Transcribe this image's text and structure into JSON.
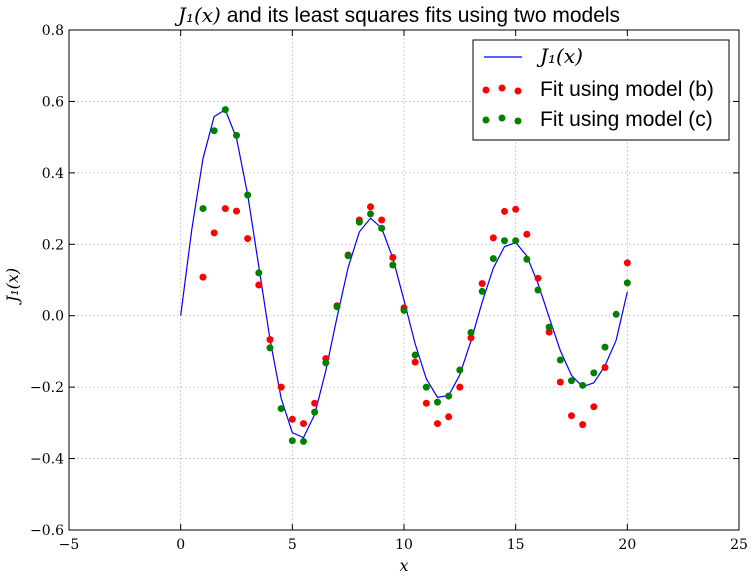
{
  "chart_data": {
    "type": "line",
    "title": {
      "math": "J₁(x)",
      "text": " and its least squares fits using two models"
    },
    "xlabel": "x",
    "ylabel": "J₁(x)",
    "xlim": [
      -5,
      25
    ],
    "ylim": [
      -0.6,
      0.8
    ],
    "xticks": [
      -5,
      0,
      5,
      10,
      15,
      20,
      25
    ],
    "yticks": [
      -0.6,
      -0.4,
      -0.2,
      0.0,
      0.2,
      0.4,
      0.6,
      0.8
    ],
    "xtick_labels": [
      "−5",
      "0",
      "5",
      "10",
      "15",
      "20",
      "25"
    ],
    "ytick_labels": [
      "−0.6",
      "−0.4",
      "−0.2",
      "0.0",
      "0.2",
      "0.4",
      "0.6",
      "0.8"
    ],
    "grid": true,
    "legend_position": "top-right",
    "series": [
      {
        "name": "J₁(x)",
        "kind": "line",
        "color": "#0000ff",
        "x": [
          0,
          0.5,
          1,
          1.5,
          2,
          2.5,
          3,
          3.5,
          4,
          4.5,
          5,
          5.5,
          6,
          6.5,
          7,
          7.5,
          8,
          8.5,
          9,
          9.5,
          10,
          10.5,
          11,
          11.5,
          12,
          12.5,
          13,
          13.5,
          14,
          14.5,
          15,
          15.5,
          16,
          16.5,
          17,
          17.5,
          18,
          18.5,
          19,
          19.5,
          20
        ],
        "y": [
          0.0,
          0.2423,
          0.4401,
          0.5579,
          0.5767,
          0.4971,
          0.3391,
          0.1374,
          -0.066,
          -0.2311,
          -0.3276,
          -0.3414,
          -0.2767,
          -0.1538,
          -0.0047,
          0.1352,
          0.2346,
          0.2731,
          0.2453,
          0.1613,
          0.0435,
          -0.0789,
          -0.1768,
          -0.2284,
          -0.2234,
          -0.1655,
          -0.0703,
          0.0379,
          0.1334,
          0.1934,
          0.2051,
          0.1672,
          0.0904,
          -0.0047,
          -0.0977,
          -0.1672,
          -0.1989,
          -0.1878,
          -0.1399,
          -0.0685,
          0.0668
        ]
      },
      {
        "name": "Fit using model (b)",
        "kind": "scatter",
        "color": "#ff0000",
        "x": [
          1,
          1.5,
          2,
          2.5,
          3,
          3.5,
          4,
          4.5,
          5,
          5.5,
          6,
          6.5,
          7,
          7.5,
          8,
          8.5,
          9,
          9.5,
          10,
          10.5,
          11,
          11.5,
          12,
          12.5,
          13,
          13.5,
          14,
          14.5,
          15,
          15.5,
          16,
          16.5,
          17,
          17.5,
          18,
          18.5,
          19,
          20
        ],
        "y": [
          0.108,
          0.232,
          0.3,
          0.293,
          0.216,
          0.086,
          -0.067,
          -0.2,
          -0.29,
          -0.302,
          -0.245,
          -0.12,
          0.028,
          0.17,
          0.268,
          0.305,
          0.268,
          0.163,
          0.022,
          -0.13,
          -0.245,
          -0.302,
          -0.283,
          -0.2,
          -0.062,
          0.09,
          0.218,
          0.292,
          0.298,
          0.228,
          0.105,
          -0.046,
          -0.186,
          -0.28,
          -0.305,
          -0.255,
          -0.145,
          0.148
        ]
      },
      {
        "name": "Fit using model (c)",
        "kind": "scatter",
        "color": "#008000",
        "x": [
          1,
          1.5,
          2,
          2.5,
          3,
          3.5,
          4,
          4.5,
          5,
          5.5,
          6,
          6.5,
          7,
          7.5,
          8,
          8.5,
          9,
          9.5,
          10,
          10.5,
          11,
          11.5,
          12,
          12.5,
          13,
          13.5,
          14,
          14.5,
          15,
          15.5,
          16,
          16.5,
          17,
          17.5,
          18,
          18.5,
          19,
          19.5,
          20
        ],
        "y": [
          0.3,
          0.518,
          0.577,
          0.505,
          0.338,
          0.12,
          -0.09,
          -0.26,
          -0.35,
          -0.352,
          -0.27,
          -0.132,
          0.025,
          0.168,
          0.262,
          0.285,
          0.245,
          0.142,
          0.015,
          -0.11,
          -0.2,
          -0.242,
          -0.225,
          -0.152,
          -0.047,
          0.068,
          0.16,
          0.21,
          0.21,
          0.158,
          0.072,
          -0.032,
          -0.124,
          -0.182,
          -0.195,
          -0.16,
          -0.088,
          0.004,
          0.092
        ]
      }
    ]
  }
}
